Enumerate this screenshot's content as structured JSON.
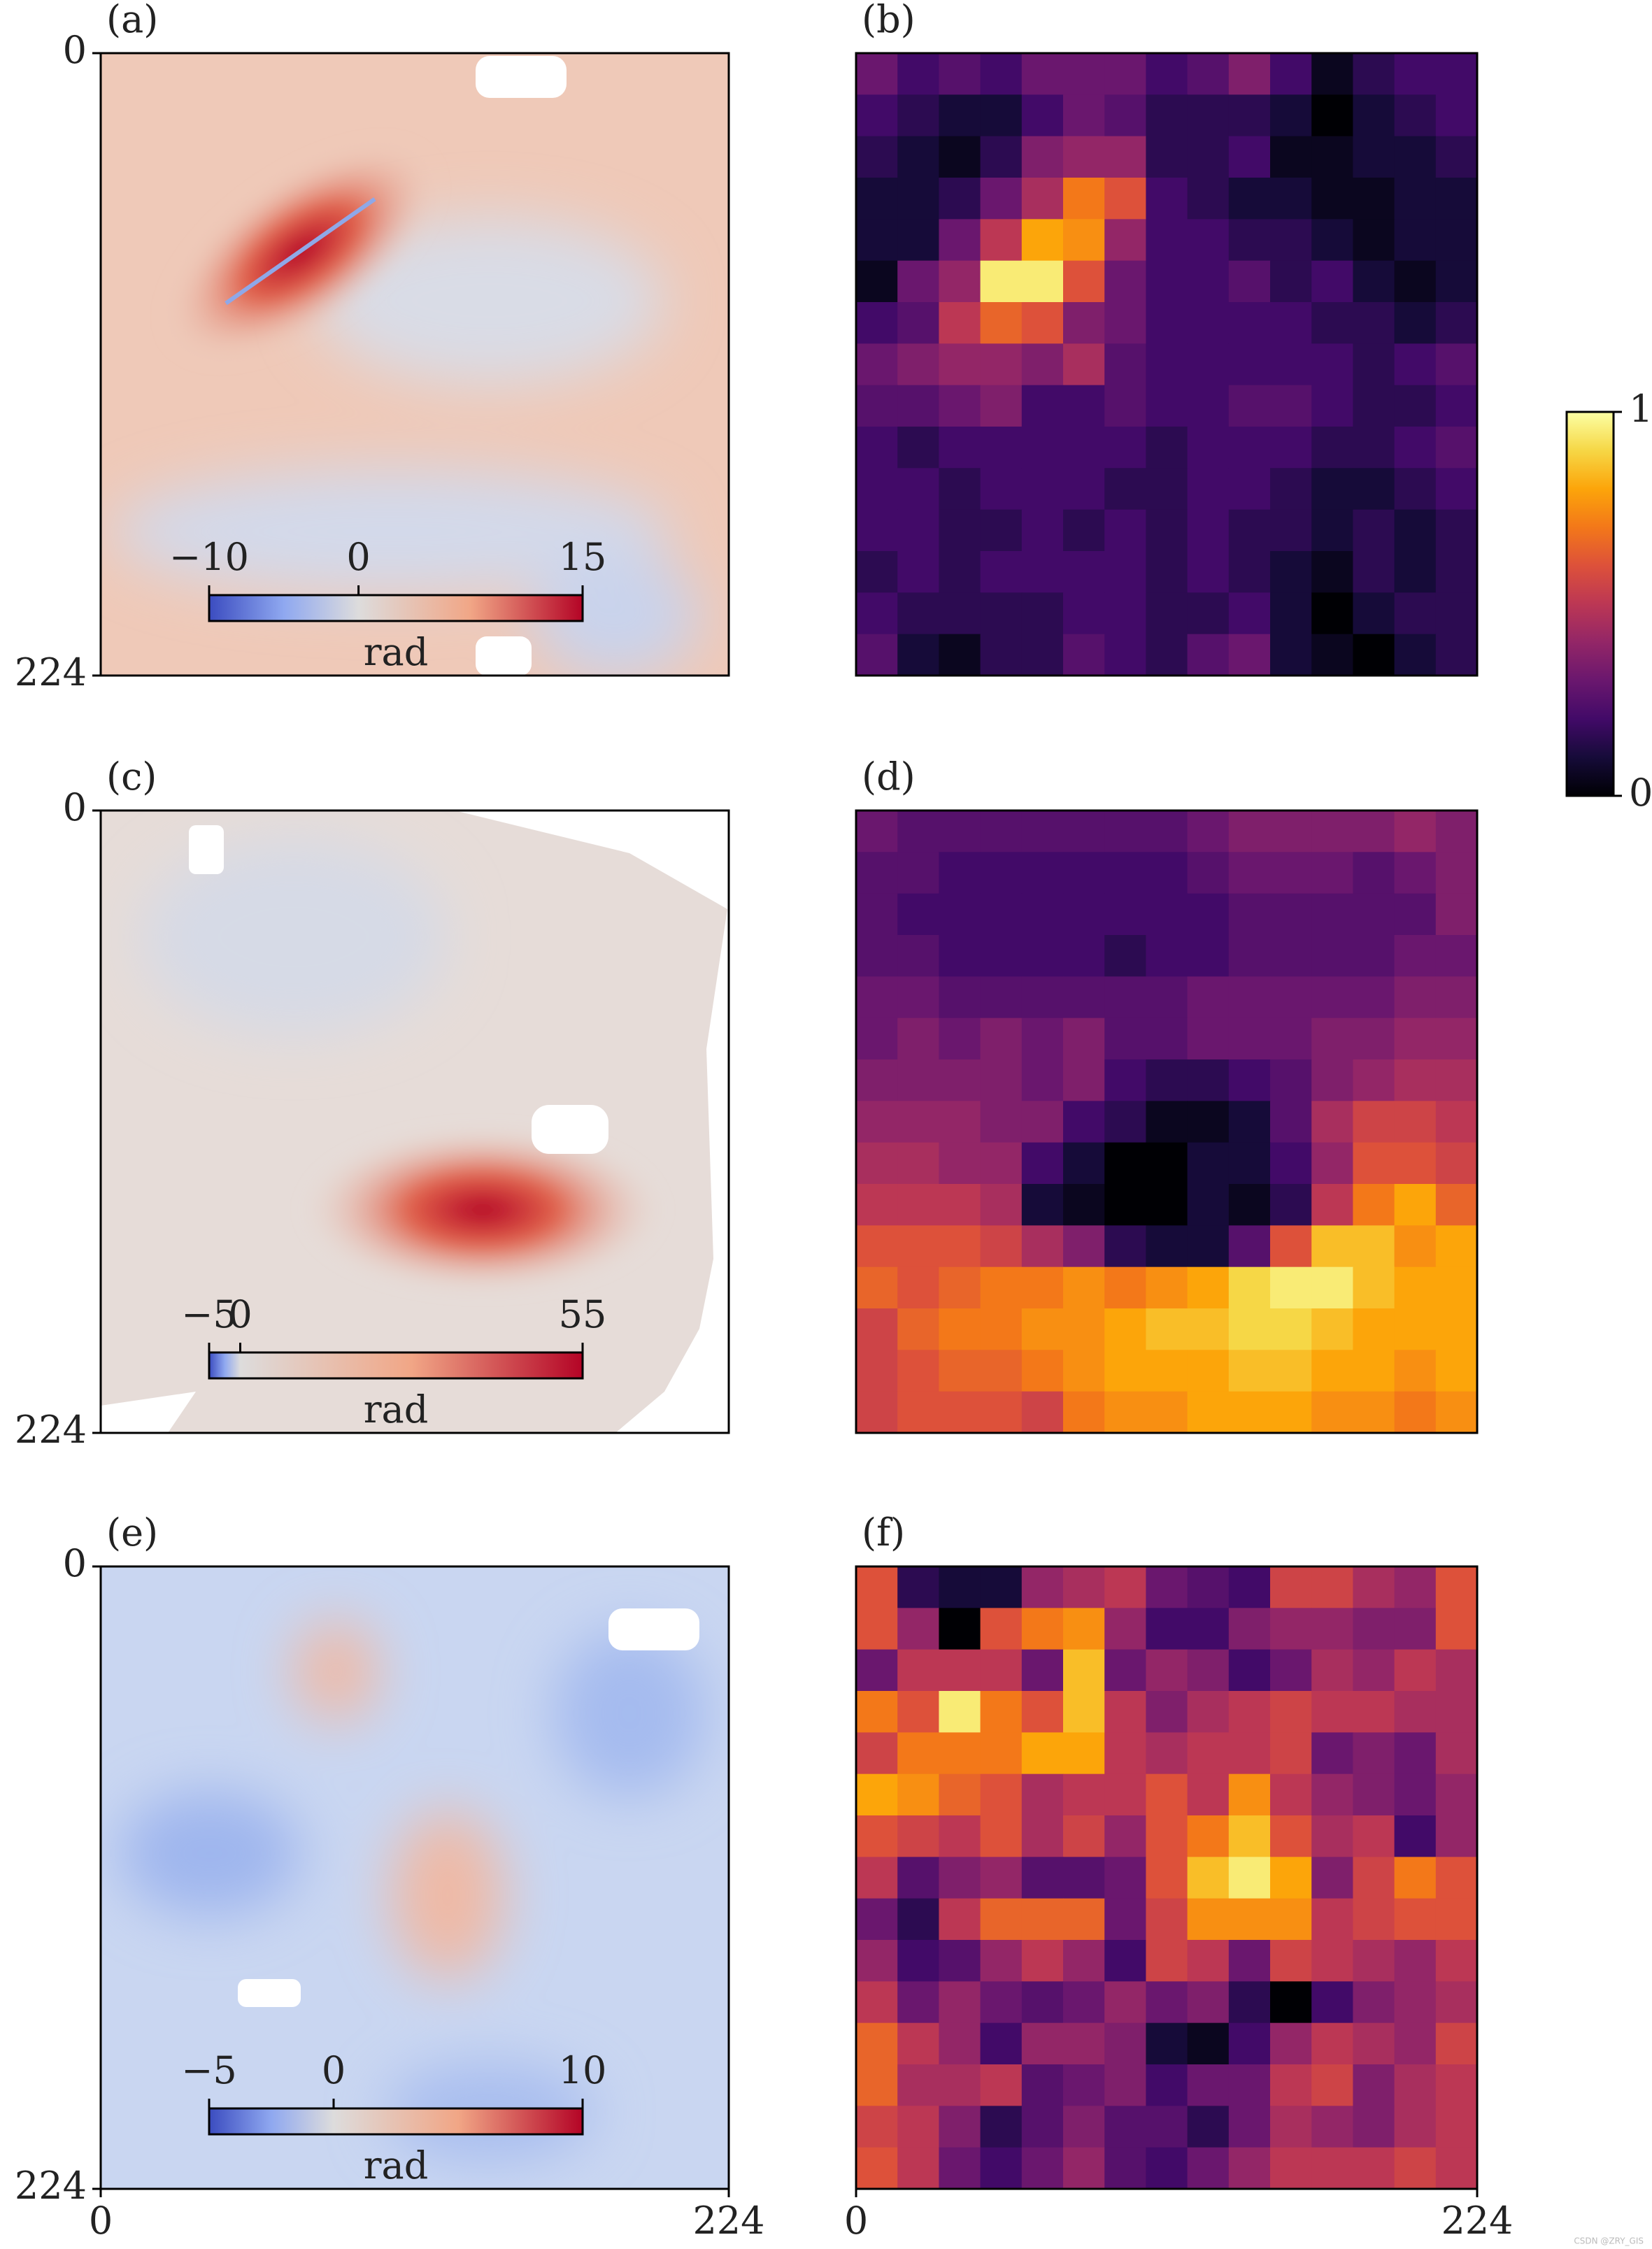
{
  "chart_data": {
    "type": "panel-grid",
    "panels": [
      {
        "type": "image",
        "label": "(a)",
        "ylim": [
          0,
          224
        ],
        "yticks": [
          0,
          224
        ],
        "colorbar": {
          "label": "rad",
          "lim": [
            -10,
            15
          ],
          "ticks": [
            {
              "value": -10,
              "label": "−10"
            },
            0,
            15
          ]
        }
      },
      {
        "type": "heatmap",
        "label": "(b)",
        "clim": [
          0,
          1
        ],
        "values": [
          [
            0.3,
            0.2,
            0.25,
            0.2,
            0.3,
            0.3,
            0.3,
            0.2,
            0.25,
            0.35,
            0.2,
            0.05,
            0.15,
            0.2,
            0.2
          ],
          [
            0.2,
            0.15,
            0.1,
            0.1,
            0.2,
            0.3,
            0.25,
            0.15,
            0.15,
            0.15,
            0.1,
            0,
            0.1,
            0.15,
            0.2
          ],
          [
            0.15,
            0.1,
            0.05,
            0.15,
            0.35,
            0.4,
            0.4,
            0.15,
            0.15,
            0.2,
            0.05,
            0.05,
            0.1,
            0.1,
            0.15
          ],
          [
            0.1,
            0.1,
            0.15,
            0.3,
            0.45,
            0.7,
            0.6,
            0.2,
            0.15,
            0.1,
            0.1,
            0.05,
            0.05,
            0.1,
            0.1
          ],
          [
            0.1,
            0.1,
            0.3,
            0.5,
            0.8,
            0.75,
            0.4,
            0.2,
            0.2,
            0.15,
            0.15,
            0.1,
            0.05,
            0.1,
            0.1
          ],
          [
            0.05,
            0.3,
            0.4,
            0.95,
            0.95,
            0.6,
            0.3,
            0.2,
            0.2,
            0.25,
            0.15,
            0.2,
            0.1,
            0.05,
            0.1
          ],
          [
            0.2,
            0.25,
            0.5,
            0.65,
            0.6,
            0.35,
            0.3,
            0.2,
            0.2,
            0.2,
            0.2,
            0.15,
            0.15,
            0.1,
            0.15
          ],
          [
            0.3,
            0.35,
            0.4,
            0.4,
            0.35,
            0.45,
            0.25,
            0.2,
            0.2,
            0.2,
            0.2,
            0.2,
            0.15,
            0.2,
            0.25
          ],
          [
            0.25,
            0.25,
            0.3,
            0.35,
            0.2,
            0.2,
            0.25,
            0.2,
            0.2,
            0.25,
            0.25,
            0.2,
            0.15,
            0.15,
            0.2
          ],
          [
            0.2,
            0.15,
            0.2,
            0.2,
            0.2,
            0.2,
            0.2,
            0.15,
            0.2,
            0.2,
            0.2,
            0.15,
            0.15,
            0.2,
            0.25
          ],
          [
            0.2,
            0.2,
            0.15,
            0.2,
            0.2,
            0.2,
            0.15,
            0.15,
            0.2,
            0.2,
            0.15,
            0.1,
            0.1,
            0.15,
            0.2
          ],
          [
            0.2,
            0.2,
            0.15,
            0.15,
            0.2,
            0.15,
            0.2,
            0.15,
            0.2,
            0.15,
            0.15,
            0.1,
            0.15,
            0.1,
            0.15
          ],
          [
            0.15,
            0.2,
            0.15,
            0.2,
            0.2,
            0.2,
            0.2,
            0.15,
            0.2,
            0.15,
            0.1,
            0.05,
            0.15,
            0.1,
            0.15
          ],
          [
            0.2,
            0.15,
            0.15,
            0.15,
            0.15,
            0.2,
            0.2,
            0.15,
            0.15,
            0.2,
            0.1,
            0,
            0.1,
            0.15,
            0.15
          ],
          [
            0.25,
            0.1,
            0.05,
            0.15,
            0.15,
            0.25,
            0.2,
            0.15,
            0.25,
            0.3,
            0.1,
            0.05,
            0,
            0.1,
            0.15
          ]
        ]
      },
      {
        "type": "image",
        "label": "(c)",
        "ylim": [
          0,
          224
        ],
        "yticks": [
          0,
          224
        ],
        "colorbar": {
          "label": "rad",
          "lim": [
            -5,
            55
          ],
          "ticks": [
            {
              "value": -5,
              "label": "−5"
            },
            0,
            55
          ]
        }
      },
      {
        "type": "heatmap",
        "label": "(d)",
        "clim": [
          0,
          1
        ],
        "values": [
          [
            0.3,
            0.25,
            0.25,
            0.25,
            0.25,
            0.25,
            0.25,
            0.25,
            0.3,
            0.35,
            0.35,
            0.35,
            0.35,
            0.4,
            0.35
          ],
          [
            0.25,
            0.25,
            0.2,
            0.2,
            0.2,
            0.2,
            0.2,
            0.2,
            0.25,
            0.3,
            0.3,
            0.3,
            0.25,
            0.3,
            0.35
          ],
          [
            0.25,
            0.2,
            0.2,
            0.2,
            0.2,
            0.2,
            0.2,
            0.2,
            0.2,
            0.25,
            0.25,
            0.25,
            0.25,
            0.25,
            0.35
          ],
          [
            0.25,
            0.25,
            0.2,
            0.2,
            0.2,
            0.2,
            0.15,
            0.2,
            0.2,
            0.25,
            0.25,
            0.25,
            0.25,
            0.3,
            0.3
          ],
          [
            0.3,
            0.3,
            0.25,
            0.25,
            0.25,
            0.25,
            0.25,
            0.25,
            0.3,
            0.3,
            0.3,
            0.3,
            0.3,
            0.35,
            0.35
          ],
          [
            0.3,
            0.35,
            0.3,
            0.35,
            0.3,
            0.35,
            0.25,
            0.25,
            0.3,
            0.3,
            0.3,
            0.35,
            0.35,
            0.4,
            0.4
          ],
          [
            0.35,
            0.35,
            0.35,
            0.35,
            0.3,
            0.35,
            0.2,
            0.15,
            0.15,
            0.2,
            0.25,
            0.35,
            0.4,
            0.45,
            0.45
          ],
          [
            0.4,
            0.4,
            0.4,
            0.35,
            0.35,
            0.2,
            0.15,
            0.05,
            0.05,
            0.1,
            0.25,
            0.45,
            0.55,
            0.55,
            0.5
          ],
          [
            0.45,
            0.45,
            0.4,
            0.4,
            0.2,
            0.1,
            0,
            0,
            0.1,
            0.1,
            0.2,
            0.4,
            0.6,
            0.6,
            0.55
          ],
          [
            0.5,
            0.5,
            0.5,
            0.45,
            0.1,
            0.05,
            0,
            0,
            0.1,
            0.05,
            0.15,
            0.5,
            0.7,
            0.8,
            0.65
          ],
          [
            0.6,
            0.6,
            0.6,
            0.55,
            0.45,
            0.35,
            0.15,
            0.1,
            0.1,
            0.25,
            0.6,
            0.85,
            0.85,
            0.75,
            0.8
          ],
          [
            0.65,
            0.6,
            0.65,
            0.7,
            0.7,
            0.75,
            0.7,
            0.75,
            0.8,
            0.9,
            0.95,
            0.95,
            0.85,
            0.8,
            0.8
          ],
          [
            0.55,
            0.65,
            0.7,
            0.7,
            0.75,
            0.75,
            0.8,
            0.85,
            0.85,
            0.9,
            0.9,
            0.85,
            0.8,
            0.8,
            0.8
          ],
          [
            0.55,
            0.6,
            0.65,
            0.65,
            0.7,
            0.75,
            0.8,
            0.8,
            0.8,
            0.85,
            0.85,
            0.8,
            0.8,
            0.75,
            0.8
          ],
          [
            0.55,
            0.6,
            0.6,
            0.6,
            0.55,
            0.7,
            0.75,
            0.75,
            0.8,
            0.8,
            0.8,
            0.75,
            0.75,
            0.7,
            0.75
          ]
        ]
      },
      {
        "type": "image",
        "label": "(e)",
        "ylim": [
          0,
          224
        ],
        "yticks": [
          0,
          224
        ],
        "xlim": [
          0,
          224
        ],
        "xticks": [
          0,
          224
        ],
        "colorbar": {
          "label": "rad",
          "lim": [
            -5,
            10
          ],
          "ticks": [
            {
              "value": -5,
              "label": "−5"
            },
            0,
            10
          ]
        }
      },
      {
        "type": "heatmap",
        "label": "(f)",
        "clim": [
          0,
          1
        ],
        "xlim": [
          0,
          224
        ],
        "xticks": [
          0,
          224
        ],
        "values": [
          [
            0.6,
            0.15,
            0.1,
            0.1,
            0.4,
            0.45,
            0.5,
            0.3,
            0.25,
            0.2,
            0.55,
            0.55,
            0.45,
            0.4,
            0.6
          ],
          [
            0.6,
            0.4,
            0,
            0.6,
            0.7,
            0.75,
            0.4,
            0.2,
            0.2,
            0.35,
            0.4,
            0.4,
            0.35,
            0.35,
            0.6
          ],
          [
            0.3,
            0.5,
            0.5,
            0.5,
            0.3,
            0.85,
            0.3,
            0.4,
            0.35,
            0.2,
            0.3,
            0.45,
            0.4,
            0.5,
            0.45
          ],
          [
            0.7,
            0.6,
            0.95,
            0.7,
            0.6,
            0.85,
            0.5,
            0.35,
            0.45,
            0.5,
            0.55,
            0.5,
            0.5,
            0.45,
            0.45
          ],
          [
            0.55,
            0.7,
            0.7,
            0.7,
            0.8,
            0.8,
            0.5,
            0.45,
            0.5,
            0.5,
            0.55,
            0.3,
            0.35,
            0.3,
            0.45
          ],
          [
            0.8,
            0.75,
            0.65,
            0.6,
            0.45,
            0.5,
            0.5,
            0.6,
            0.5,
            0.75,
            0.5,
            0.4,
            0.35,
            0.3,
            0.4
          ],
          [
            0.6,
            0.55,
            0.5,
            0.6,
            0.45,
            0.55,
            0.4,
            0.6,
            0.7,
            0.85,
            0.6,
            0.45,
            0.5,
            0.2,
            0.4
          ],
          [
            0.5,
            0.25,
            0.35,
            0.4,
            0.25,
            0.25,
            0.3,
            0.6,
            0.85,
            0.95,
            0.8,
            0.35,
            0.55,
            0.7,
            0.6
          ],
          [
            0.3,
            0.15,
            0.5,
            0.65,
            0.65,
            0.65,
            0.3,
            0.55,
            0.75,
            0.75,
            0.75,
            0.5,
            0.55,
            0.6,
            0.6
          ],
          [
            0.4,
            0.2,
            0.25,
            0.4,
            0.5,
            0.4,
            0.2,
            0.55,
            0.5,
            0.3,
            0.55,
            0.5,
            0.45,
            0.4,
            0.5
          ],
          [
            0.5,
            0.3,
            0.4,
            0.3,
            0.25,
            0.3,
            0.4,
            0.3,
            0.35,
            0.15,
            0,
            0.2,
            0.35,
            0.4,
            0.45
          ],
          [
            0.65,
            0.5,
            0.4,
            0.2,
            0.4,
            0.4,
            0.35,
            0.1,
            0.05,
            0.2,
            0.4,
            0.5,
            0.45,
            0.4,
            0.55
          ],
          [
            0.65,
            0.45,
            0.45,
            0.5,
            0.25,
            0.3,
            0.35,
            0.2,
            0.3,
            0.3,
            0.5,
            0.55,
            0.35,
            0.45,
            0.5
          ],
          [
            0.55,
            0.5,
            0.35,
            0.15,
            0.25,
            0.35,
            0.25,
            0.25,
            0.15,
            0.3,
            0.45,
            0.4,
            0.35,
            0.45,
            0.5
          ],
          [
            0.6,
            0.5,
            0.3,
            0.2,
            0.3,
            0.4,
            0.25,
            0.2,
            0.3,
            0.4,
            0.5,
            0.5,
            0.5,
            0.55,
            0.5
          ]
        ]
      }
    ],
    "colorbar": {
      "lim": [
        0,
        1
      ],
      "ticks": [
        0,
        1
      ]
    },
    "watermark": "CSDN @ZRY_GIS"
  }
}
